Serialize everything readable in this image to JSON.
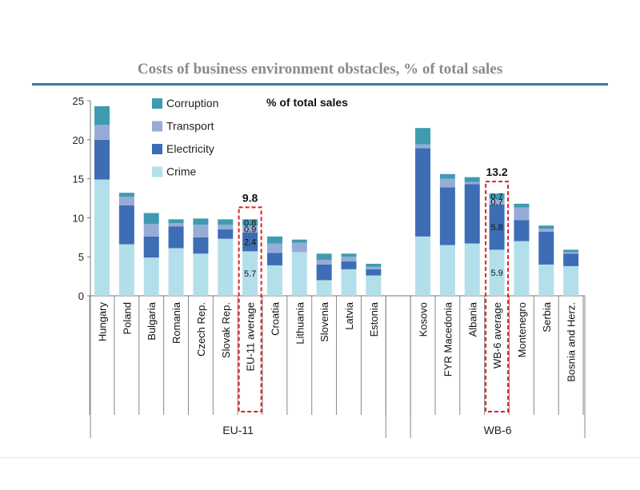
{
  "chart_data": {
    "type": "bar",
    "stacked": true,
    "title": "Costs of business environment obstacles, % of total sales",
    "annotation": "% of total sales",
    "ylim": [
      0,
      25
    ],
    "yticks": [
      0,
      5,
      10,
      15,
      20,
      25
    ],
    "grid": false,
    "legend_position": "top-left",
    "categories": [
      "Hungary",
      "Poland",
      "Bulgaria",
      "Romania",
      "Czech Rep.",
      "Slovak Rep.",
      "EU-11 average",
      "Croatia",
      "Lithuania",
      "Slovenia",
      "Latvia",
      "Estonia",
      "Kosovo",
      "FYR Macedonia",
      "Albania",
      "WB-6 average",
      "Montenegro",
      "Serbia",
      "Bosnia and Herz."
    ],
    "highlighted": [
      "EU-11 average",
      "WB-6 average"
    ],
    "groups": [
      {
        "name": "EU-11",
        "categories": [
          "Hungary",
          "Poland",
          "Bulgaria",
          "Romania",
          "Czech Rep.",
          "Slovak Rep.",
          "EU-11 average",
          "Croatia",
          "Lithuania",
          "Slovenia",
          "Latvia",
          "Estonia"
        ]
      },
      {
        "name": "WB-6",
        "categories": [
          "Kosovo",
          "FYR Macedonia",
          "Albania",
          "WB-6 average",
          "Montenegro",
          "Serbia",
          "Bosnia and Herz."
        ]
      }
    ],
    "series": [
      {
        "name": "Crime",
        "color": "#b3dfea",
        "values": [
          14.9,
          6.6,
          4.9,
          6.1,
          5.4,
          7.3,
          5.7,
          3.9,
          5.6,
          2.0,
          3.4,
          2.6,
          7.6,
          6.5,
          6.7,
          5.9,
          7.0,
          4.0,
          3.8
        ]
      },
      {
        "name": "Electricity",
        "color": "#3d6db5",
        "values": [
          5.1,
          5.0,
          2.7,
          2.8,
          2.1,
          1.2,
          2.4,
          1.6,
          0.0,
          2.0,
          1.0,
          0.8,
          11.3,
          7.4,
          7.6,
          5.8,
          2.7,
          4.2,
          1.6
        ]
      },
      {
        "name": "Transport",
        "color": "#96abd6",
        "values": [
          1.9,
          1.1,
          1.6,
          0.4,
          1.6,
          0.6,
          0.9,
          1.2,
          1.2,
          0.6,
          0.6,
          0.3,
          0.5,
          1.1,
          0.3,
          0.7,
          1.6,
          0.4,
          0.2
        ]
      },
      {
        "name": "Corruption",
        "color": "#3f9bb0",
        "values": [
          2.4,
          0.5,
          1.4,
          0.5,
          0.8,
          0.7,
          0.8,
          0.9,
          0.4,
          0.8,
          0.4,
          0.4,
          2.1,
          0.6,
          0.6,
          0.7,
          0.5,
          0.4,
          0.3
        ]
      }
    ],
    "data_labels": {
      "EU-11 average": {
        "segments": [
          "5.7",
          "2.4",
          "0.9",
          "0.8"
        ],
        "total": "9.8"
      },
      "WB-6 average": {
        "segments": [
          "5.9",
          "5.8",
          "0.7",
          "0.7"
        ],
        "total": "13.2"
      }
    }
  }
}
